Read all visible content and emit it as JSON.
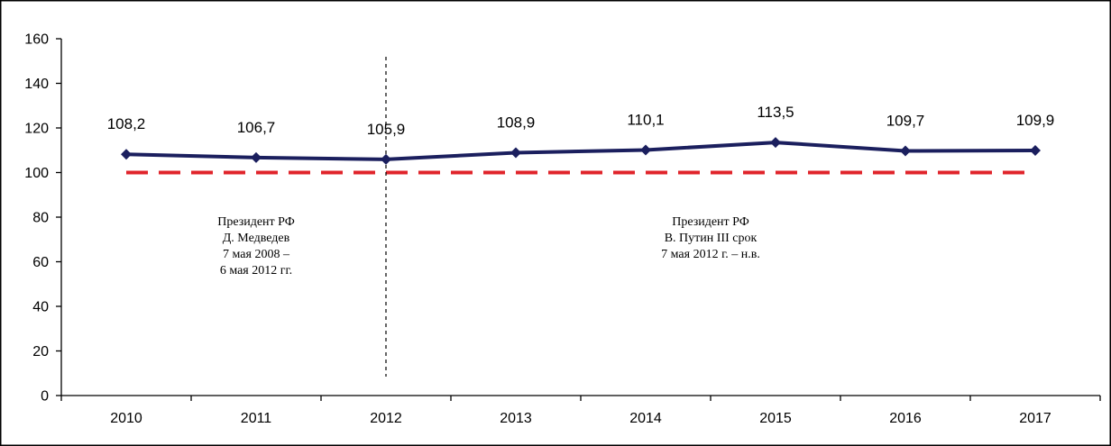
{
  "chart_data": {
    "type": "line",
    "x": [
      "2010",
      "2011",
      "2012",
      "2013",
      "2014",
      "2015",
      "2016",
      "2017"
    ],
    "series": [
      {
        "values": [
          108.2,
          106.7,
          105.9,
          108.9,
          110.1,
          113.5,
          109.7,
          109.9
        ],
        "color": "#1b1f5e",
        "marker": "diamond"
      }
    ],
    "data_labels": [
      "108,2",
      "106,7",
      "105,9",
      "108,9",
      "110,1",
      "113,5",
      "109,7",
      "109,9"
    ],
    "reference_line": {
      "value": 100,
      "style": "dashed",
      "color": "#e0242b"
    },
    "divider_at": "2012",
    "ylim": [
      0,
      160
    ],
    "y_ticks": [
      "0",
      "20",
      "40",
      "60",
      "80",
      "100",
      "120",
      "140",
      "160"
    ],
    "grid": false,
    "annotations": [
      {
        "lines": [
          "Президент РФ",
          "Д. Медведев",
          "7 мая 2008 –",
          "6 мая 2012 гг."
        ]
      },
      {
        "lines": [
          "Президент РФ",
          "В. Путин III срок",
          "7 мая 2012 г. – н.в."
        ]
      }
    ]
  }
}
